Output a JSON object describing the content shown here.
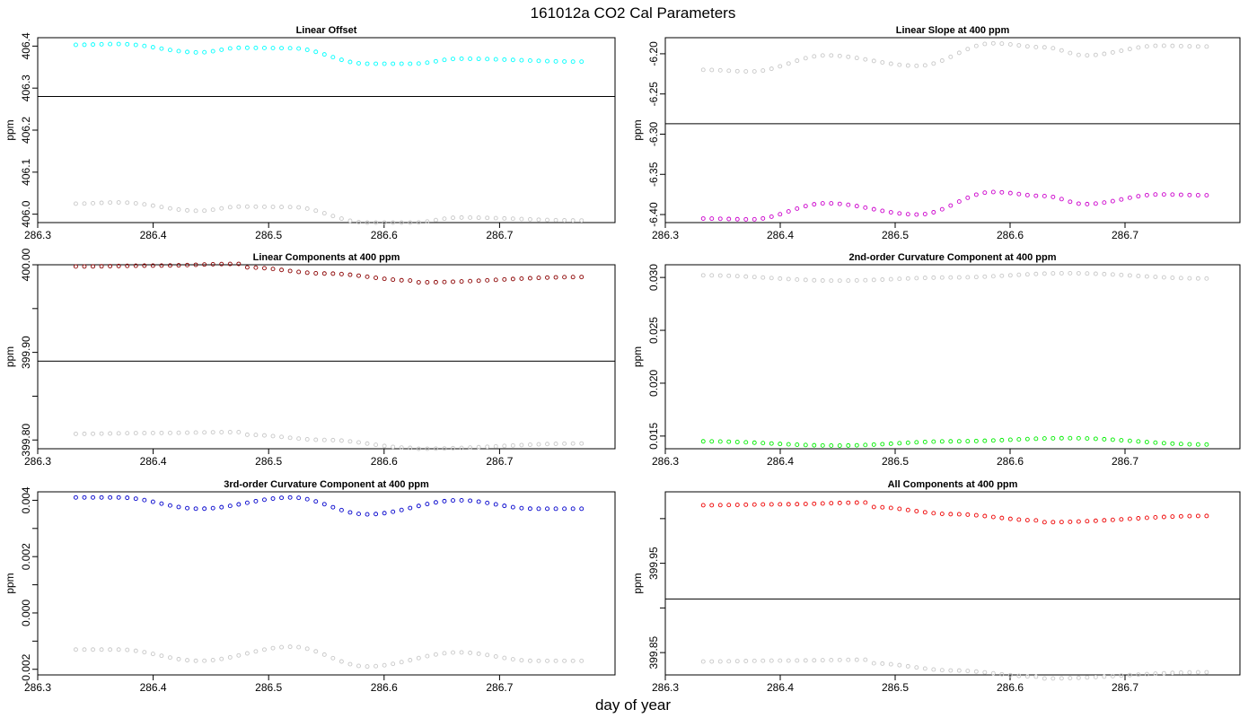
{
  "figure": {
    "title": "161012a   CO2 Cal Parameters",
    "xlabel": "day of year"
  },
  "colors": {
    "reference_points": "#c8c8c8",
    "reference_line": "#000000"
  },
  "chart_data": [
    {
      "type": "scatter",
      "title": "Linear Offset",
      "ylabel": "ppm",
      "xlim": [
        286.3,
        286.8
      ],
      "ylim": [
        405.98,
        406.42
      ],
      "x_ticks": [
        "286.3",
        "286.4",
        "286.5",
        "286.6",
        "286.7"
      ],
      "y_ticks": [
        "406.0",
        "406.1",
        "406.2",
        "406.3",
        "406.4"
      ],
      "hline": 406.28,
      "x_range": [
        286.333,
        286.771
      ],
      "series": [
        {
          "color": "#00ffff",
          "knots_x": [
            286.333,
            286.37,
            286.44,
            286.475,
            286.52,
            286.585,
            286.625,
            286.665,
            286.771
          ],
          "knots_y": [
            406.403,
            406.405,
            406.385,
            406.396,
            406.395,
            406.358,
            406.358,
            406.37,
            406.363
          ]
        },
        {
          "color": "#c8c8c8",
          "knots_x": [
            286.333,
            286.37,
            286.44,
            286.475,
            286.52,
            286.585,
            286.625,
            286.665,
            286.771
          ],
          "knots_y": [
            406.025,
            406.028,
            406.008,
            406.018,
            406.017,
            405.98,
            405.98,
            405.992,
            405.985
          ]
        }
      ]
    },
    {
      "type": "scatter",
      "title": "Linear Slope at 400 ppm",
      "ylabel": "ppm",
      "xlim": [
        286.3,
        286.8
      ],
      "ylim": [
        -6.41,
        -6.18
      ],
      "x_ticks": [
        "286.3",
        "286.4",
        "286.5",
        "286.6",
        "286.7"
      ],
      "y_ticks": [
        "-6.20",
        "-6.25",
        "-6.30",
        "-6.35",
        "-6.40"
      ],
      "y_tick_values": [
        -6.2,
        -6.25,
        -6.3,
        -6.35,
        -6.4
      ],
      "hline": -6.287,
      "x_range": [
        286.333,
        286.771
      ],
      "series": [
        {
          "color": "#c8c8c8",
          "knots_x": [
            286.333,
            286.375,
            286.44,
            286.52,
            286.585,
            286.63,
            286.665,
            286.73,
            286.771
          ],
          "knots_y": [
            -6.22,
            -6.222,
            -6.202,
            -6.215,
            -6.187,
            -6.192,
            -6.202,
            -6.19,
            -6.191
          ]
        },
        {
          "color": "#cc00cc",
          "knots_x": [
            286.333,
            286.375,
            286.44,
            286.52,
            286.585,
            286.63,
            286.665,
            286.73,
            286.771
          ],
          "knots_y": [
            -6.405,
            -6.406,
            -6.386,
            -6.4,
            -6.372,
            -6.377,
            -6.387,
            -6.375,
            -6.376
          ]
        }
      ]
    },
    {
      "type": "scatter",
      "title": "Linear Components at 400 ppm",
      "ylabel": "ppm",
      "xlim": [
        286.3,
        286.8
      ],
      "ylim": [
        399.79,
        400.0
      ],
      "x_ticks": [
        "286.3",
        "286.4",
        "286.5",
        "286.6",
        "286.7"
      ],
      "y_ticks": [
        "400.00",
        "",
        "399.90",
        "",
        "399.80"
      ],
      "y_tick_values": [
        400.0,
        399.95,
        399.9,
        399.85,
        399.8
      ],
      "hline": 399.89,
      "x_range": [
        286.333,
        286.771
      ],
      "series": [
        {
          "color": "#8b0000",
          "knots_x": [
            286.333,
            286.4,
            286.475,
            286.48,
            286.55,
            286.625,
            286.63,
            286.771
          ],
          "knots_y": [
            399.998,
            399.999,
            400.001,
            399.997,
            399.99,
            399.982,
            399.98,
            399.986
          ]
        },
        {
          "color": "#c8c8c8",
          "knots_x": [
            286.333,
            286.4,
            286.475,
            286.48,
            286.55,
            286.625,
            286.63,
            286.771
          ],
          "knots_y": [
            399.807,
            399.808,
            399.809,
            399.806,
            399.8,
            399.791,
            399.79,
            399.796
          ]
        }
      ]
    },
    {
      "type": "scatter",
      "title": "2nd-order Curvature Component at 400 ppm",
      "ylabel": "ppm",
      "xlim": [
        286.3,
        286.8
      ],
      "ylim": [
        0.0138,
        0.0312
      ],
      "x_ticks": [
        "286.3",
        "286.4",
        "286.5",
        "286.6",
        "286.7"
      ],
      "y_ticks": [
        "0.030",
        "0.025",
        "0.020",
        "0.015"
      ],
      "y_tick_values": [
        0.03,
        0.025,
        0.02,
        0.015
      ],
      "x_range": [
        286.333,
        286.771
      ],
      "series": [
        {
          "color": "#c8c8c8",
          "knots_x": [
            286.333,
            286.45,
            286.55,
            286.65,
            286.771
          ],
          "knots_y": [
            0.0302,
            0.0297,
            0.03,
            0.0304,
            0.0299
          ]
        },
        {
          "color": "#00ee00",
          "knots_x": [
            286.333,
            286.45,
            286.55,
            286.65,
            286.771
          ],
          "knots_y": [
            0.0145,
            0.0141,
            0.0145,
            0.0148,
            0.0142
          ]
        }
      ]
    },
    {
      "type": "scatter",
      "title": "3rd-order Curvature Component at 400 ppm",
      "ylabel": "ppm",
      "xlim": [
        286.3,
        286.8
      ],
      "ylim": [
        -0.0022,
        0.0043
      ],
      "x_ticks": [
        "286.3",
        "286.4",
        "286.5",
        "286.6",
        "286.7"
      ],
      "y_ticks": [
        "0.004",
        "",
        "0.002",
        "",
        "0.000",
        "",
        "-0.002"
      ],
      "y_tick_values": [
        0.004,
        0.003,
        0.002,
        0.001,
        0.0,
        -0.001,
        -0.002
      ],
      "x_range": [
        286.333,
        286.771
      ],
      "series": [
        {
          "color": "#0000cc",
          "knots_x": [
            286.333,
            286.37,
            286.44,
            286.52,
            286.585,
            286.665,
            286.73,
            286.771
          ],
          "knots_y": [
            0.0041,
            0.0041,
            0.0037,
            0.0041,
            0.0035,
            0.004,
            0.0037,
            0.0037
          ]
        },
        {
          "color": "#c8c8c8",
          "knots_x": [
            286.333,
            286.37,
            286.44,
            286.52,
            286.585,
            286.665,
            286.73,
            286.771
          ],
          "knots_y": [
            -0.0013,
            -0.0013,
            -0.0017,
            -0.0012,
            -0.0019,
            -0.0014,
            -0.0017,
            -0.0017
          ]
        }
      ]
    },
    {
      "type": "scatter",
      "title": "All Components at 400 ppm",
      "ylabel": "ppm",
      "xlim": [
        286.3,
        286.8
      ],
      "ylim": [
        399.825,
        400.03
      ],
      "x_ticks": [
        "286.3",
        "286.4",
        "286.5",
        "286.6",
        "286.7"
      ],
      "y_ticks": [
        "",
        "399.95",
        "",
        "399.85"
      ],
      "y_tick_values": [
        400.0,
        399.95,
        399.9,
        399.85
      ],
      "hline": 399.91,
      "x_range": [
        286.333,
        286.771
      ],
      "series": [
        {
          "color": "#ee0000",
          "knots_x": [
            286.333,
            286.4,
            286.475,
            286.48,
            286.55,
            286.625,
            286.63,
            286.771
          ],
          "knots_y": [
            400.015,
            400.016,
            400.018,
            400.013,
            400.005,
            399.998,
            399.996,
            400.003
          ]
        },
        {
          "color": "#c8c8c8",
          "knots_x": [
            286.333,
            286.4,
            286.475,
            286.48,
            286.55,
            286.625,
            286.63,
            286.771
          ],
          "knots_y": [
            399.84,
            399.841,
            399.842,
            399.838,
            399.83,
            399.823,
            399.821,
            399.828
          ]
        }
      ]
    }
  ]
}
